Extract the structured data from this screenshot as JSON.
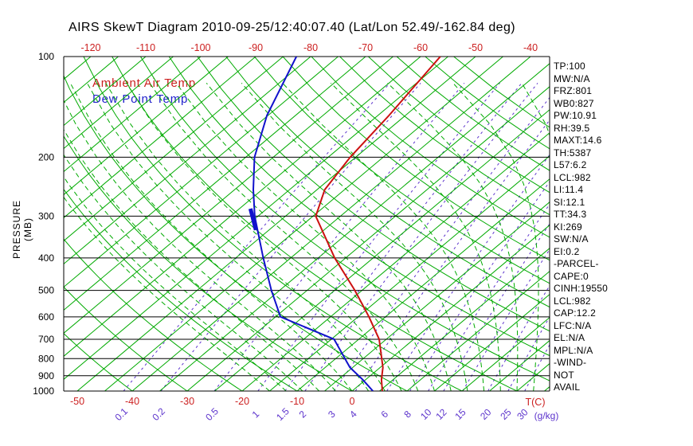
{
  "title": "AIRS SkewT Diagram 2010-09-25/12:40:07.40 (Lat/Lon 52.49/-162.84 deg)",
  "legend": {
    "ambient_label": "Ambient Air Temp",
    "dew_label": "Dew Point Temp"
  },
  "axes": {
    "pressure_label": "PRESSURE (MB)",
    "temp_unit": "T(C)",
    "mixing_unit": "(g/kg)",
    "pressure_ticks": [
      100,
      200,
      300,
      400,
      500,
      600,
      700,
      800,
      900,
      1000
    ],
    "top_temp_ticks": [
      -120,
      -110,
      -100,
      -90,
      -80,
      -70,
      -60,
      -50,
      -40
    ],
    "bottom_temp_ticks": [
      -50,
      -40,
      -30,
      -20,
      -10,
      0
    ]
  },
  "colors": {
    "isotherm": "#00aa00",
    "adiabat": "#00aa00",
    "moist": "#00aa00",
    "mixing": "#5c33cc",
    "pressure_line": "#000000",
    "ambient": "#cc1111",
    "dew": "#1111cc",
    "tick_red": "#cc2020"
  },
  "stats": [
    "TP:100",
    "MW:N/A",
    "FRZ:801",
    "WB0:827",
    "PW:10.91",
    "RH:39.5",
    "MAXT:14.6",
    "TH:5387",
    "L57:6.2",
    "LCL:982",
    "LI:11.4",
    "SI:12.1",
    "TT:34.3",
    "KI:269",
    "SW:N/A",
    "EI:0.2",
    "-PARCEL-",
    "CAPE:0",
    "CINH:19550",
    "LCL:982",
    "CAP:12.2",
    "LFC:N/A",
    "EL:N/A",
    "MPL:N/A",
    "-WIND-",
    "NOT",
    "AVAIL"
  ],
  "chart_data": {
    "type": "line",
    "title": "AIRS SkewT Diagram 2010-09-25/12:40:07.40 (Lat/Lon 52.49/-162.84 deg)",
    "xlabel": "T(C)",
    "ylabel": "PRESSURE (MB)",
    "y_scale": "log",
    "ylim": [
      1000,
      100
    ],
    "isotherm_range_c": [
      -125,
      35,
      5
    ],
    "dry_adiabat_theta_range_c": [
      -40,
      150,
      10
    ],
    "moist_adiabat_start_range_c": [
      -15,
      36,
      3
    ],
    "mixing_ratio_lines_g_kg": [
      0.1,
      0.2,
      0.5,
      1,
      1.5,
      2,
      3,
      4,
      6,
      8,
      10,
      12,
      15,
      20,
      25,
      30
    ],
    "series": [
      {
        "name": "Ambient Air Temp",
        "color": "#cc1111",
        "points_p_mb_t_c": [
          [
            1000,
            5.5
          ],
          [
            925,
            2.9
          ],
          [
            850,
            0.5
          ],
          [
            700,
            -6.3
          ],
          [
            600,
            -13.0
          ],
          [
            500,
            -21.3
          ],
          [
            400,
            -32.0
          ],
          [
            300,
            -44.5
          ],
          [
            250,
            -48.6
          ],
          [
            200,
            -51.0
          ],
          [
            150,
            -53.0
          ],
          [
            100,
            -56.4
          ]
        ]
      },
      {
        "name": "Dew Point Temp",
        "color": "#1111cc",
        "points_p_mb_t_c": [
          [
            1000,
            3.8
          ],
          [
            925,
            -0.5
          ],
          [
            850,
            -5.5
          ],
          [
            700,
            -14.5
          ],
          [
            600,
            -29.1
          ],
          [
            500,
            -36.5
          ],
          [
            400,
            -45.0
          ],
          [
            300,
            -55.6
          ],
          [
            250,
            -61.6
          ],
          [
            200,
            -68.4
          ],
          [
            150,
            -75.2
          ],
          [
            100,
            -82.6
          ]
        ],
        "thick_segment_p_mb_t_c": [
          [
            330,
            -52.4
          ],
          [
            285,
            -58.0
          ]
        ]
      }
    ]
  }
}
